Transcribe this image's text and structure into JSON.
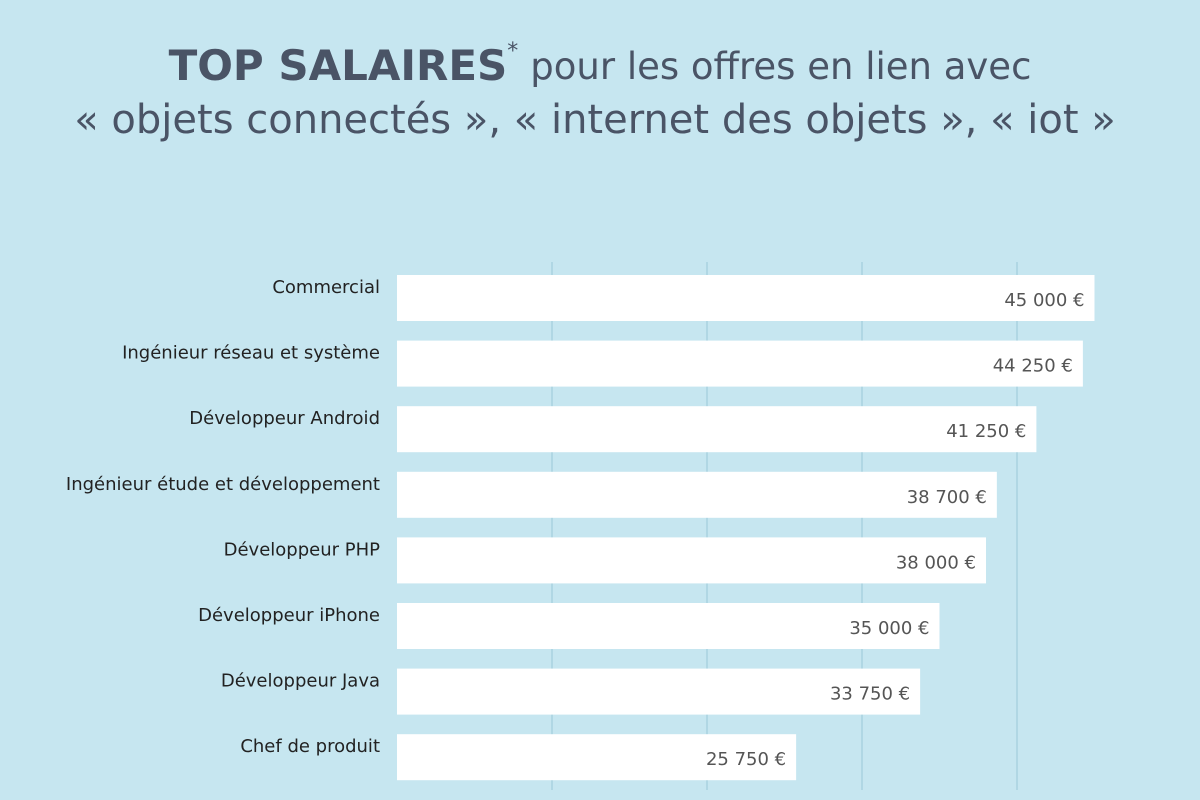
{
  "chart_data": {
    "type": "bar",
    "orientation": "horizontal",
    "title_parts": [
      "TOP SALAIRES",
      "*",
      "pour les offres en lien avec",
      "« objets connectés », « internet des objets », « iot »"
    ],
    "categories": [
      "Commercial",
      "Ingénieur réseau et système",
      "Développeur Android",
      "Ingénieur étude et développement",
      "Développeur PHP",
      "Développeur iPhone",
      "Développeur Java",
      "Chef de produit"
    ],
    "values": [
      45000,
      44250,
      41250,
      38700,
      38000,
      35000,
      33750,
      25750
    ],
    "value_labels": [
      "45 000 €",
      "44 250 €",
      "41 250 €",
      "38 700 €",
      "38 000 €",
      "35 000 €",
      "33 750 €",
      "25 750 €"
    ],
    "color": "#ffffff",
    "xlim": [
      0,
      50000
    ],
    "xticks": [
      10000,
      20000,
      30000,
      40000
    ],
    "grid": true
  }
}
